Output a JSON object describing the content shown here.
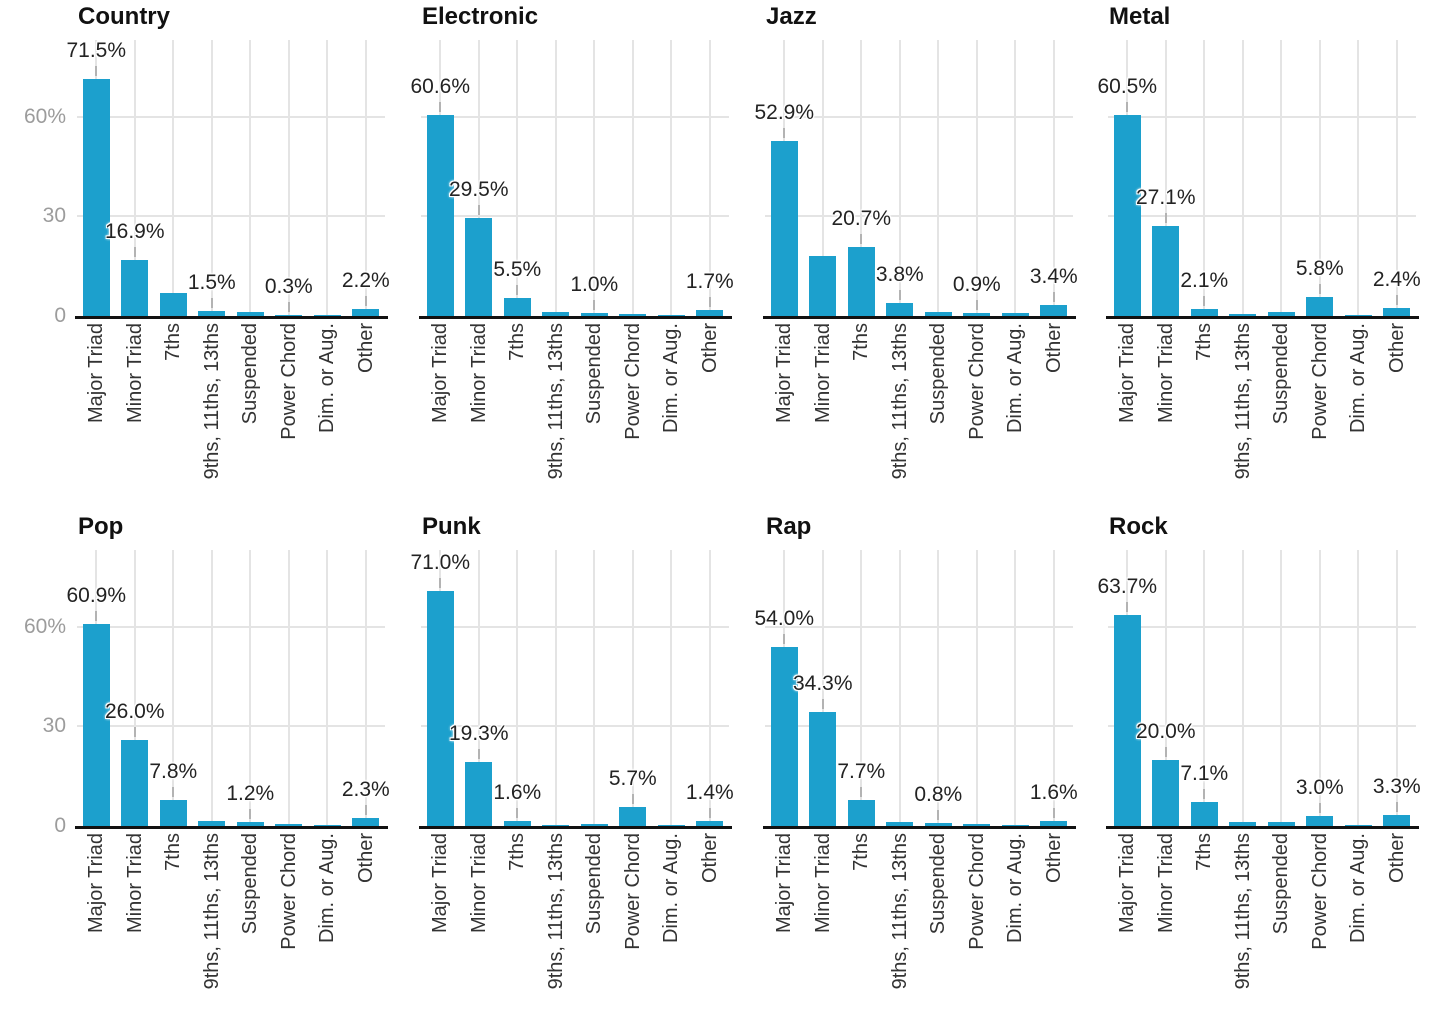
{
  "chart_data": {
    "type": "bar",
    "layout": "facet_grid_2x4",
    "unit": "percent",
    "grid": true,
    "bar_color": "#1CA0CD",
    "categories": [
      "Major Triad",
      "Minor Triad",
      "7ths",
      "9ths, 11ths, 13ths",
      "Suspended",
      "Power Chord",
      "Dim. or Aug.",
      "Other"
    ],
    "y_axis": {
      "ticks": [
        "60%",
        "30",
        "0"
      ],
      "tick_values": [
        60,
        30,
        0
      ],
      "range": [
        0,
        83
      ]
    },
    "facets": [
      {
        "name": "Country",
        "values": [
          71.5,
          16.9,
          6.9,
          1.5,
          1.1,
          0.3,
          0.1,
          2.2
        ],
        "labels": [
          "71.5%",
          "16.9%",
          "",
          "1.5%",
          "",
          "0.3%",
          "",
          "2.2%"
        ]
      },
      {
        "name": "Electronic",
        "values": [
          60.6,
          29.5,
          5.5,
          1.2,
          1.0,
          0.5,
          0.2,
          1.7
        ],
        "labels": [
          "60.6%",
          "29.5%",
          "5.5%",
          "",
          "1.0%",
          "",
          "",
          "1.7%"
        ]
      },
      {
        "name": "Jazz",
        "values": [
          52.9,
          18.0,
          20.7,
          3.8,
          1.2,
          0.9,
          0.8,
          3.4
        ],
        "labels": [
          "52.9%",
          "",
          "20.7%",
          "3.8%",
          "",
          "0.9%",
          "",
          "3.4%"
        ]
      },
      {
        "name": "Metal",
        "values": [
          60.5,
          27.1,
          2.1,
          0.5,
          1.2,
          5.8,
          0.1,
          2.4
        ],
        "labels": [
          "60.5%",
          "27.1%",
          "2.1%",
          "",
          "",
          "5.8%",
          "",
          "2.4%"
        ]
      },
      {
        "name": "Pop",
        "values": [
          60.9,
          26.0,
          7.8,
          1.5,
          1.2,
          0.6,
          0.2,
          2.3
        ],
        "labels": [
          "60.9%",
          "26.0%",
          "7.8%",
          "",
          "1.2%",
          "",
          "",
          "2.3%"
        ]
      },
      {
        "name": "Punk",
        "values": [
          71.0,
          19.3,
          1.6,
          0.1,
          0.5,
          5.7,
          0.1,
          1.4
        ],
        "labels": [
          "71.0%",
          "19.3%",
          "1.6%",
          "",
          "",
          "5.7%",
          "",
          "1.4%"
        ]
      },
      {
        "name": "Rap",
        "values": [
          54.0,
          34.3,
          7.7,
          1.2,
          0.8,
          0.6,
          0.3,
          1.6
        ],
        "labels": [
          "54.0%",
          "34.3%",
          "7.7%",
          "",
          "0.8%",
          "",
          "",
          "1.6%"
        ]
      },
      {
        "name": "Rock",
        "values": [
          63.7,
          20.0,
          7.1,
          1.3,
          1.1,
          3.0,
          0.1,
          3.3
        ],
        "labels": [
          "63.7%",
          "20.0%",
          "7.1%",
          "",
          "",
          "3.0%",
          "",
          "3.3%"
        ]
      }
    ]
  },
  "styles": {
    "bar_color": "#1CA0CD",
    "grid_color": "#E4E4E4",
    "axis_color": "#121212",
    "ytick_color": "#9C9C9C",
    "value_label_color": "#232323",
    "xlabel_color": "#333333",
    "title_color": "#111111"
  }
}
